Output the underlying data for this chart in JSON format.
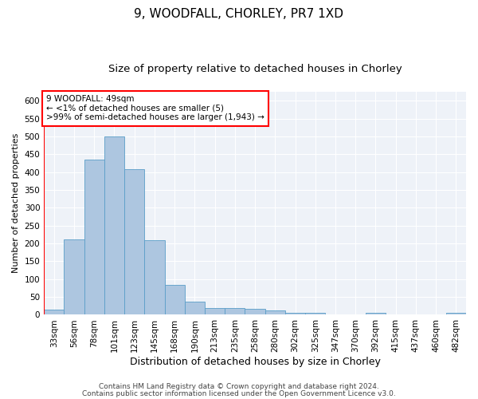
{
  "title1": "9, WOODFALL, CHORLEY, PR7 1XD",
  "title2": "Size of property relative to detached houses in Chorley",
  "xlabel": "Distribution of detached houses by size in Chorley",
  "ylabel": "Number of detached properties",
  "categories": [
    "33sqm",
    "56sqm",
    "78sqm",
    "101sqm",
    "123sqm",
    "145sqm",
    "168sqm",
    "190sqm",
    "213sqm",
    "235sqm",
    "258sqm",
    "280sqm",
    "302sqm",
    "325sqm",
    "347sqm",
    "370sqm",
    "392sqm",
    "415sqm",
    "437sqm",
    "460sqm",
    "482sqm"
  ],
  "values": [
    15,
    212,
    435,
    500,
    408,
    210,
    83,
    36,
    20,
    18,
    17,
    12,
    6,
    5,
    1,
    1,
    5,
    0,
    0,
    1,
    5
  ],
  "bar_color": "#adc6e0",
  "bar_edge_color": "#5a9ec8",
  "annotation_box_text": "9 WOODFALL: 49sqm\n← <1% of detached houses are smaller (5)\n>99% of semi-detached houses are larger (1,943) →",
  "box_color": "white",
  "box_edge_color": "red",
  "marker_line_color": "red",
  "ylim": [
    0,
    625
  ],
  "yticks": [
    0,
    50,
    100,
    150,
    200,
    250,
    300,
    350,
    400,
    450,
    500,
    550,
    600
  ],
  "footnote1": "Contains HM Land Registry data © Crown copyright and database right 2024.",
  "footnote2": "Contains public sector information licensed under the Open Government Licence v3.0.",
  "background_color": "#eef2f8",
  "title1_fontsize": 11,
  "title2_fontsize": 9.5,
  "xlabel_fontsize": 9,
  "ylabel_fontsize": 8,
  "tick_fontsize": 7.5,
  "footnote_fontsize": 6.5,
  "annot_fontsize": 7.5
}
